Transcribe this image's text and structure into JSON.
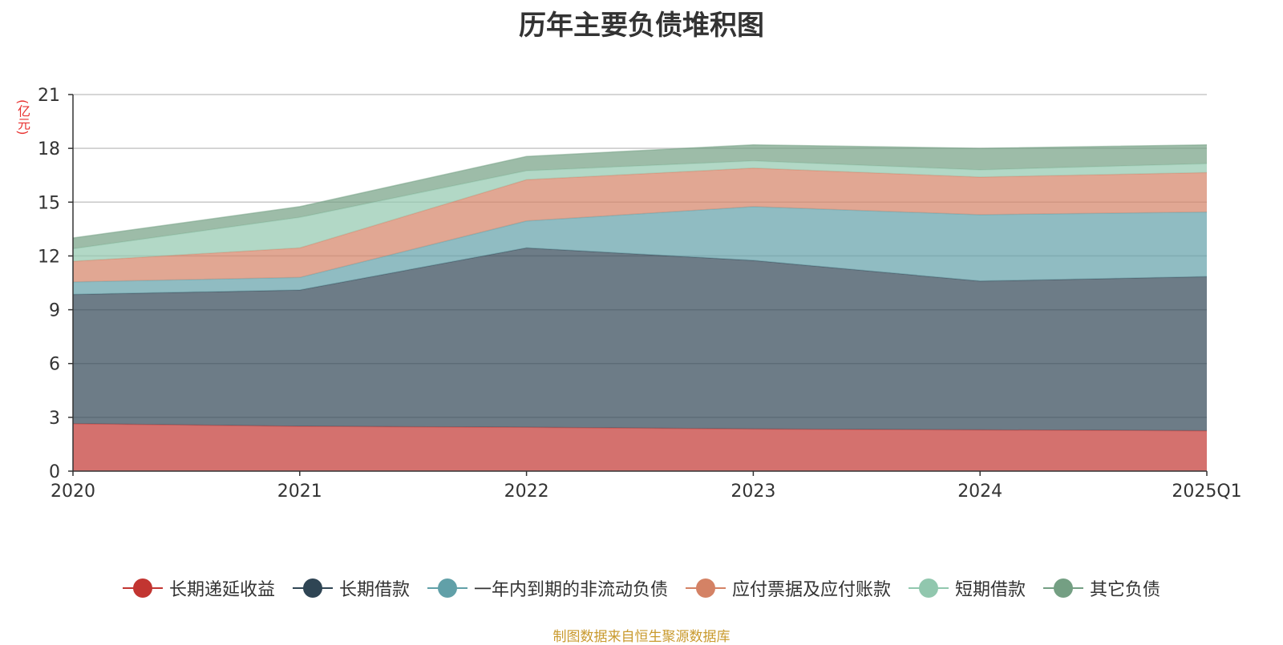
{
  "chart_data": {
    "type": "area",
    "stacked": true,
    "title": "历年主要负债堆积图",
    "unit_label": "(亿元)",
    "categories": [
      "2020",
      "2021",
      "2022",
      "2023",
      "2024",
      "2025Q1"
    ],
    "ylim": [
      0,
      21
    ],
    "yticks": [
      "0",
      "3",
      "6",
      "9",
      "12",
      "15",
      "18",
      "21"
    ],
    "grid": true,
    "legend_position": "bottom",
    "series": [
      {
        "name": "长期递延收益",
        "values": [
          2.65,
          2.5,
          2.45,
          2.35,
          2.3,
          2.25
        ],
        "color": "#c23531"
      },
      {
        "name": "长期借款",
        "values": [
          7.2,
          7.6,
          10.0,
          9.4,
          8.3,
          8.6
        ],
        "color": "#2f4554"
      },
      {
        "name": "一年内到期的非流动负债",
        "values": [
          0.7,
          0.7,
          1.5,
          3.0,
          3.7,
          3.6
        ],
        "color": "#61a0a8"
      },
      {
        "name": "应付票据及应付账款",
        "values": [
          1.15,
          1.65,
          2.3,
          2.15,
          2.1,
          2.2
        ],
        "color": "#d48265"
      },
      {
        "name": "短期借款",
        "values": [
          0.7,
          1.7,
          0.5,
          0.4,
          0.4,
          0.5
        ],
        "color": "#91c7ae"
      },
      {
        "name": "其它负债",
        "values": [
          0.6,
          0.6,
          0.8,
          0.9,
          1.2,
          1.05
        ],
        "color": "#749f83"
      }
    ],
    "source": "制图数据来自恒生聚源数据库"
  }
}
